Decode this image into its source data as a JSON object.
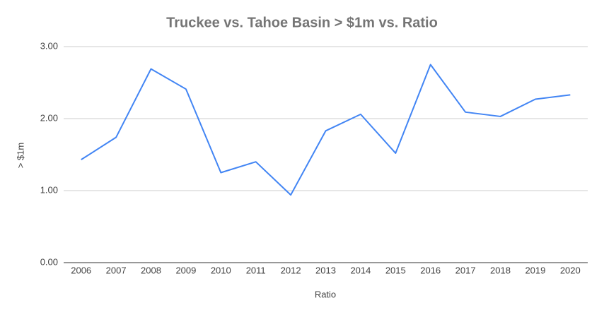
{
  "chart_data": {
    "type": "line",
    "title": "Truckee vs. Tahoe Basin > $1m vs. Ratio",
    "x_label": "Ratio",
    "y_label": "> $1m",
    "categories": [
      "2006",
      "2007",
      "2008",
      "2009",
      "2010",
      "2011",
      "2012",
      "2013",
      "2014",
      "2015",
      "2016",
      "2017",
      "2018",
      "2019",
      "2020"
    ],
    "series": [
      {
        "name": "> $1m",
        "color": "#4285f4",
        "values": [
          1.43,
          1.74,
          2.69,
          2.41,
          1.25,
          1.4,
          0.94,
          1.83,
          2.06,
          1.52,
          2.75,
          2.09,
          2.03,
          2.27,
          2.33
        ]
      }
    ],
    "ylim": [
      0,
      3
    ],
    "yticks": [
      {
        "value": 0,
        "label": "0.00"
      },
      {
        "value": 1,
        "label": "1.00"
      },
      {
        "value": 2,
        "label": "2.00"
      },
      {
        "value": 3,
        "label": "3.00"
      }
    ],
    "grid": true
  }
}
